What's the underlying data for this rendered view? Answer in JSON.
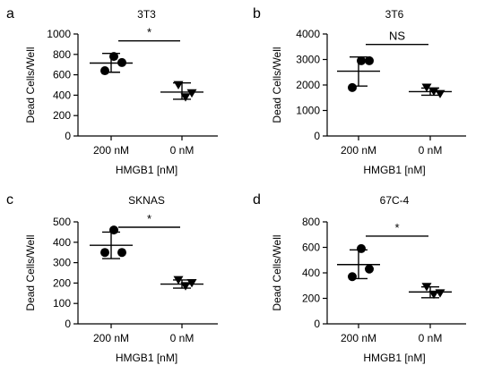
{
  "chart_data": [
    {
      "panel": "a",
      "type": "scatter",
      "title": "3T3",
      "ylabel": "Dead Cells/Well",
      "xlabel": "HMGB1 [nM]",
      "categories": [
        "200 nM",
        "0 nM"
      ],
      "ylim": [
        0,
        1000
      ],
      "yticks": [
        0,
        200,
        400,
        600,
        800,
        1000
      ],
      "series": [
        {
          "category": "200 nM",
          "marker": "circle",
          "points": [
            780,
            720,
            640
          ],
          "mean": 715,
          "sd_low": 625,
          "sd_high": 810
        },
        {
          "category": "0 nM",
          "marker": "triangle-down",
          "points": [
            500,
            420,
            380
          ],
          "mean": 430,
          "sd_low": 360,
          "sd_high": 520
        }
      ],
      "significance": "*"
    },
    {
      "panel": "b",
      "type": "scatter",
      "title": "3T6",
      "ylabel": "Dead Cells/Well",
      "xlabel": "HMGB1 [nM]",
      "categories": [
        "200 nM",
        "0 nM"
      ],
      "ylim": [
        0,
        4000
      ],
      "yticks": [
        0,
        1000,
        2000,
        3000,
        4000
      ],
      "series": [
        {
          "category": "200 nM",
          "marker": "circle",
          "points": [
            2950,
            2950,
            1900
          ],
          "mean": 2540,
          "sd_low": 1960,
          "sd_high": 3100
        },
        {
          "category": "0 nM",
          "marker": "triangle-down",
          "points": [
            1900,
            1650,
            1750
          ],
          "mean": 1740,
          "sd_low": 1600,
          "sd_high": 1880
        }
      ],
      "significance": "NS"
    },
    {
      "panel": "c",
      "type": "scatter",
      "title": "SKNAS",
      "ylabel": "Dead Cells/Well",
      "xlabel": "HMGB1 [nM]",
      "categories": [
        "200 nM",
        "0 nM"
      ],
      "ylim": [
        0,
        500
      ],
      "yticks": [
        0,
        100,
        200,
        300,
        400,
        500
      ],
      "series": [
        {
          "category": "200 nM",
          "marker": "circle",
          "points": [
            460,
            350,
            350
          ],
          "mean": 385,
          "sd_low": 320,
          "sd_high": 450
        },
        {
          "category": "0 nM",
          "marker": "triangle-down",
          "points": [
            215,
            200,
            185
          ],
          "mean": 195,
          "sd_low": 175,
          "sd_high": 215
        }
      ],
      "significance": "*"
    },
    {
      "panel": "d",
      "type": "scatter",
      "title": "67C-4",
      "ylabel": "Dead Cells/Well",
      "xlabel": "HMGB1 [nM]",
      "categories": [
        "200 nM",
        "0 nM"
      ],
      "ylim": [
        0,
        800
      ],
      "yticks": [
        0,
        200,
        400,
        600,
        800
      ],
      "series": [
        {
          "category": "200 nM",
          "marker": "circle",
          "points": [
            590,
            430,
            370
          ],
          "mean": 465,
          "sd_low": 355,
          "sd_high": 580
        },
        {
          "category": "0 nM",
          "marker": "triangle-down",
          "points": [
            290,
            240,
            230
          ],
          "mean": 250,
          "sd_low": 205,
          "sd_high": 290
        }
      ],
      "significance": "*"
    }
  ]
}
